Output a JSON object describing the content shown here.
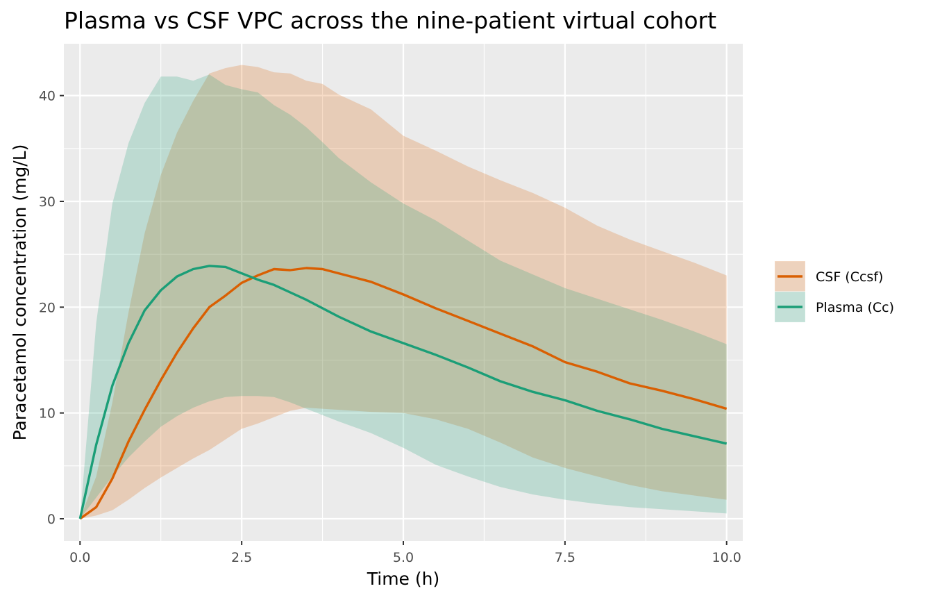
{
  "chart_data": {
    "type": "line",
    "title": "Plasma vs CSF VPC across the nine-patient virtual cohort",
    "xlabel": "Time (h)",
    "ylabel": "Paracetamol concentration (mg/L)",
    "xlim": [
      -0.25,
      10.25
    ],
    "ylim": [
      -2.1,
      44.9
    ],
    "xticks": [
      0,
      2.5,
      5,
      7.5,
      10
    ],
    "xtick_labels": [
      "0.0",
      "2.5",
      "5.0",
      "7.5",
      "10.0"
    ],
    "yticks": [
      0,
      10,
      20,
      30,
      40
    ],
    "ytick_labels": [
      "0",
      "10",
      "20",
      "30",
      "40"
    ],
    "grid": true,
    "legend_position": "right",
    "series": [
      {
        "name": "CSF (Ccsf)",
        "color": "#D95F02",
        "x": [
          0,
          0.25,
          0.5,
          0.75,
          1,
          1.25,
          1.5,
          1.75,
          2,
          2.25,
          2.5,
          2.75,
          3,
          3.25,
          3.5,
          3.75,
          4,
          4.5,
          5,
          5.5,
          6,
          6.5,
          7,
          7.5,
          8,
          8.5,
          9,
          9.5,
          10
        ],
        "median": [
          0,
          1.1,
          3.8,
          7.3,
          10.3,
          13.1,
          15.7,
          18.0,
          20.0,
          21.1,
          22.3,
          23.0,
          23.6,
          23.5,
          23.7,
          23.6,
          23.2,
          22.4,
          21.2,
          19.9,
          18.7,
          17.5,
          16.3,
          14.8,
          13.9,
          12.8,
          12.1,
          11.3,
          10.4
        ],
        "lower": [
          0,
          0.3,
          0.8,
          1.8,
          2.9,
          3.9,
          4.8,
          5.7,
          6.5,
          7.5,
          8.5,
          9.0,
          9.6,
          10.2,
          10.5,
          10.4,
          10.3,
          10.1,
          10.0,
          9.4,
          8.5,
          7.2,
          5.8,
          4.8,
          4.0,
          3.2,
          2.6,
          2.2,
          1.8
        ],
        "upper": [
          0,
          4.0,
          11.0,
          19.5,
          27.0,
          32.5,
          36.5,
          39.5,
          42.1,
          42.6,
          42.9,
          42.7,
          42.2,
          42.1,
          41.4,
          41.1,
          40.1,
          38.7,
          36.2,
          34.8,
          33.3,
          32.0,
          30.8,
          29.4,
          27.7,
          26.4,
          25.3,
          24.2,
          23.0
        ]
      },
      {
        "name": "Plasma (Cc)",
        "color": "#1B9E77",
        "x": [
          0,
          0.25,
          0.5,
          0.75,
          1,
          1.25,
          1.5,
          1.75,
          2,
          2.25,
          2.5,
          2.75,
          3,
          3.25,
          3.5,
          3.75,
          4,
          4.5,
          5,
          5.5,
          6,
          6.5,
          7,
          7.5,
          8,
          8.5,
          9,
          9.5,
          10
        ],
        "median": [
          0,
          7.0,
          12.6,
          16.6,
          19.7,
          21.6,
          22.9,
          23.6,
          23.9,
          23.8,
          23.2,
          22.6,
          22.1,
          21.4,
          20.7,
          19.9,
          19.1,
          17.7,
          16.6,
          15.5,
          14.3,
          13.0,
          12.0,
          11.2,
          10.2,
          9.4,
          8.5,
          7.8,
          7.1
        ],
        "lower": [
          0,
          2.0,
          4.0,
          5.8,
          7.3,
          8.7,
          9.7,
          10.5,
          11.1,
          11.5,
          11.6,
          11.6,
          11.5,
          11.0,
          10.4,
          9.8,
          9.2,
          8.1,
          6.7,
          5.1,
          4.0,
          3.0,
          2.3,
          1.8,
          1.4,
          1.1,
          0.9,
          0.7,
          0.5
        ],
        "upper": [
          0,
          18.5,
          29.8,
          35.5,
          39.3,
          41.8,
          41.8,
          41.4,
          42.0,
          41.0,
          40.6,
          40.3,
          39.1,
          38.2,
          37.0,
          35.6,
          34.1,
          31.8,
          29.8,
          28.2,
          26.3,
          24.4,
          23.1,
          21.8,
          20.8,
          19.8,
          18.8,
          17.7,
          16.5
        ]
      }
    ]
  }
}
